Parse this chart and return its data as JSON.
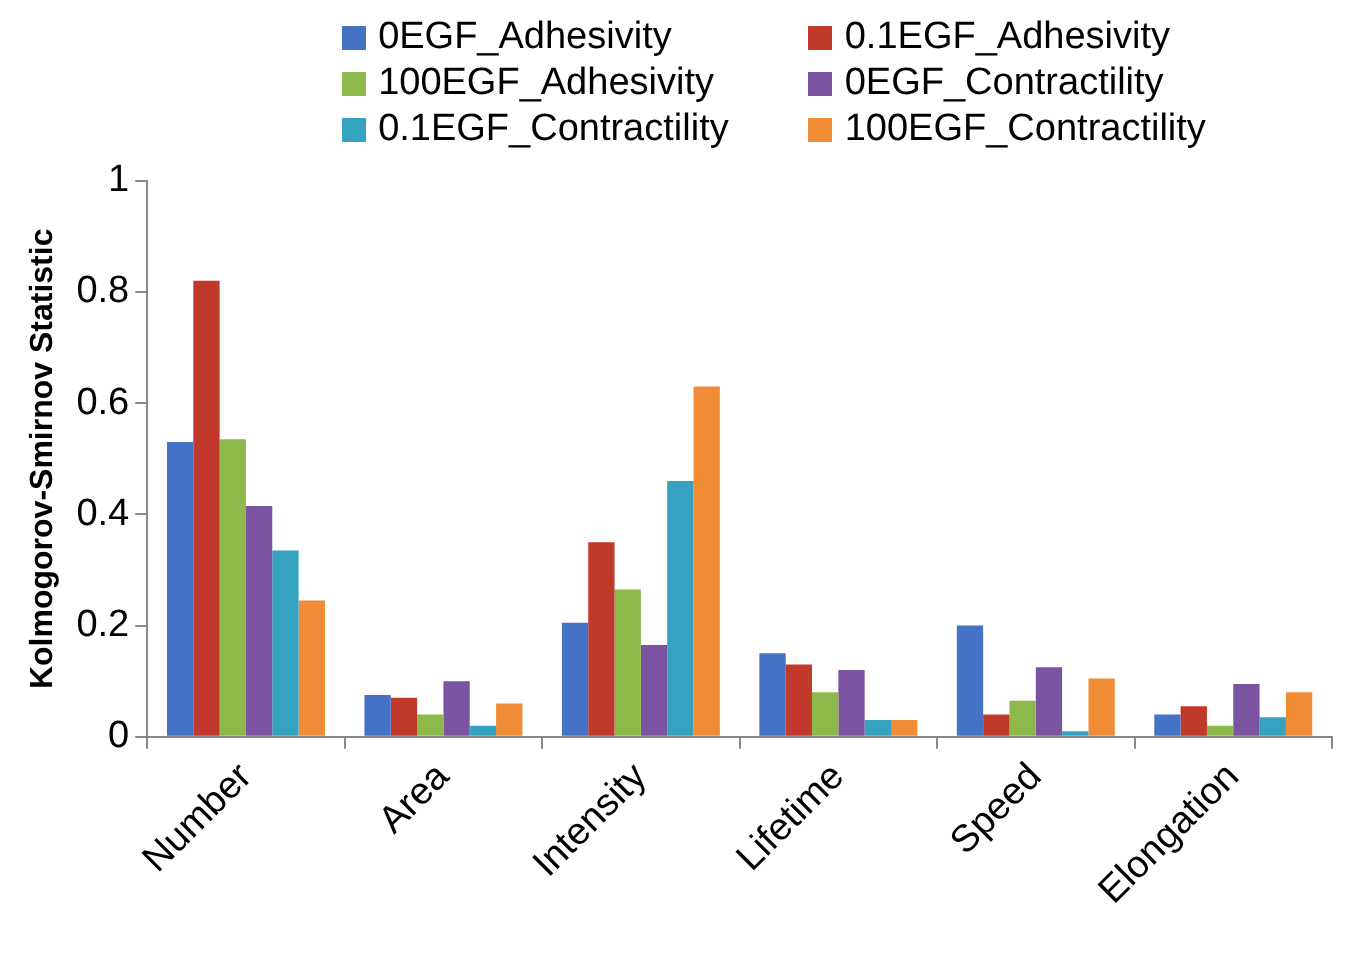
{
  "chart_data": {
    "type": "bar",
    "ylabel": "Kolmogorov-Smirnov Statistic",
    "categories": [
      "Number",
      "Area",
      "Intensity",
      "Lifetime",
      "Speed",
      "Elongation"
    ],
    "series": [
      {
        "name": "0EGF_Adhesivity",
        "color": "#4472c4",
        "values": [
          0.53,
          0.075,
          0.205,
          0.15,
          0.2,
          0.04
        ]
      },
      {
        "name": "0.1EGF_Adhesivity",
        "color": "#c0392b",
        "values": [
          0.82,
          0.07,
          0.35,
          0.13,
          0.04,
          0.055
        ]
      },
      {
        "name": "100EGF_Adhesivity",
        "color": "#8db94a",
        "values": [
          0.535,
          0.04,
          0.265,
          0.08,
          0.065,
          0.02
        ]
      },
      {
        "name": "0EGF_Contractility",
        "color": "#7a54a0",
        "values": [
          0.415,
          0.1,
          0.165,
          0.12,
          0.125,
          0.095
        ]
      },
      {
        "name": "0.1EGF_Contractility",
        "color": "#35a3c0",
        "values": [
          0.335,
          0.02,
          0.46,
          0.03,
          0.01,
          0.035
        ]
      },
      {
        "name": "100EGF_Contractility",
        "color": "#f08c35",
        "values": [
          0.245,
          0.06,
          0.63,
          0.03,
          0.105,
          0.08
        ]
      }
    ],
    "ylim": [
      0,
      1
    ],
    "yticks": [
      0,
      0.2,
      0.4,
      0.6,
      0.8,
      1
    ],
    "grid": false,
    "legend": "top"
  }
}
